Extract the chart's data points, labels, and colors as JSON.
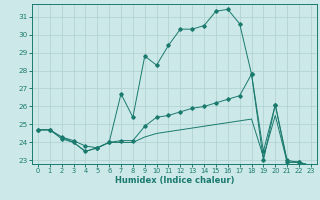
{
  "title": "",
  "xlabel": "Humidex (Indice chaleur)",
  "bg_color": "#cce8e8",
  "line_color": "#1a7a6e",
  "grid_color": "#afd0d0",
  "xlim": [
    -0.5,
    23.5
  ],
  "ylim": [
    22.8,
    31.7
  ],
  "yticks": [
    23,
    24,
    25,
    26,
    27,
    28,
    29,
    30,
    31
  ],
  "xticks": [
    0,
    1,
    2,
    3,
    4,
    5,
    6,
    7,
    8,
    9,
    10,
    11,
    12,
    13,
    14,
    15,
    16,
    17,
    18,
    19,
    20,
    21,
    22,
    23
  ],
  "curve_main": {
    "x": [
      0,
      1,
      2,
      3,
      4,
      5,
      6,
      7,
      8,
      9,
      10,
      11,
      12,
      13,
      14,
      15,
      16,
      17,
      18,
      19,
      20,
      21,
      22,
      23
    ],
    "y": [
      24.7,
      24.7,
      24.2,
      24.0,
      23.5,
      23.7,
      24.0,
      26.7,
      25.4,
      28.8,
      28.3,
      29.4,
      30.3,
      30.3,
      30.5,
      31.3,
      31.4,
      30.6,
      27.8,
      23.0,
      26.1,
      23.0,
      22.9,
      22.7
    ]
  },
  "curve_diag": {
    "x": [
      0,
      1,
      2,
      3,
      4,
      5,
      6,
      7,
      8,
      9,
      10,
      11,
      12,
      13,
      14,
      15,
      16,
      17,
      18,
      19,
      20,
      21,
      22,
      23
    ],
    "y": [
      24.7,
      24.7,
      24.3,
      24.1,
      23.8,
      23.7,
      24.0,
      24.1,
      24.1,
      24.9,
      25.4,
      25.5,
      25.7,
      25.9,
      26.0,
      26.2,
      26.4,
      26.6,
      27.8,
      23.5,
      26.1,
      22.9,
      22.9,
      22.7
    ]
  },
  "curve_flat": {
    "x": [
      0,
      1,
      2,
      3,
      4,
      5,
      6,
      7,
      8,
      9,
      10,
      11,
      12,
      13,
      14,
      15,
      16,
      17,
      18,
      19,
      20,
      21,
      22,
      23
    ],
    "y": [
      24.7,
      24.7,
      24.3,
      24.0,
      23.5,
      23.7,
      24.0,
      24.0,
      24.0,
      24.3,
      24.5,
      24.6,
      24.7,
      24.8,
      24.9,
      25.0,
      25.1,
      25.2,
      25.3,
      23.2,
      25.5,
      22.9,
      22.9,
      22.7
    ]
  }
}
